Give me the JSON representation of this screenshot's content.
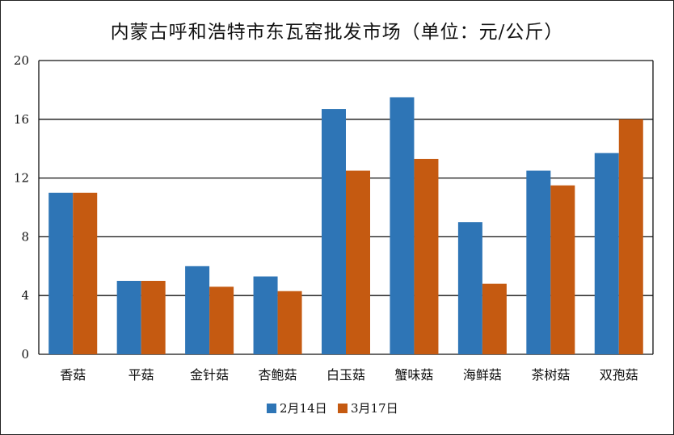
{
  "chart_data": {
    "type": "bar",
    "title": "内蒙古呼和浩特市东瓦窑批发市场（单位：元/公斤）",
    "xlabel": "",
    "ylabel": "",
    "categories": [
      "香菇",
      "平菇",
      "金针菇",
      "杏鲍菇",
      "白玉菇",
      "蟹味菇",
      "海鲜菇",
      "茶树菇",
      "双孢菇"
    ],
    "series": [
      {
        "name": "2月14日",
        "color": "#2e75b6",
        "values": [
          11,
          5,
          6,
          5.3,
          16.7,
          17.5,
          9,
          12.5,
          13.7
        ]
      },
      {
        "name": "3月17日",
        "color": "#c55a11",
        "values": [
          11,
          5,
          4.6,
          4.3,
          12.5,
          13.3,
          4.8,
          11.5,
          16
        ]
      }
    ],
    "ylim": [
      0,
      20
    ],
    "yticks": [
      0,
      4,
      8,
      12,
      16,
      20
    ],
    "grid": true,
    "legend_position": "bottom"
  }
}
